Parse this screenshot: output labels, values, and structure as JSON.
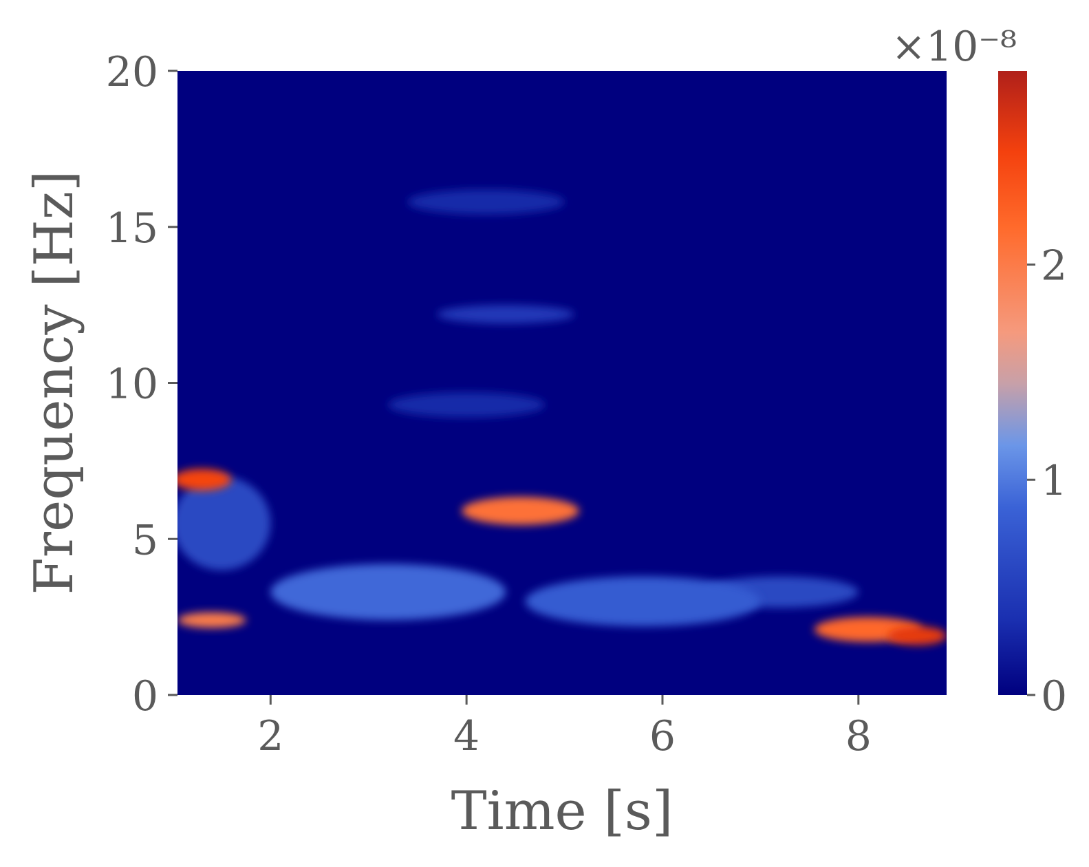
{
  "chart_data": {
    "type": "heatmap",
    "title": "",
    "xlabel": "Time [s]",
    "ylabel": "Frequency [Hz]",
    "xlim": [
      1.05,
      8.9
    ],
    "ylim": [
      0,
      20
    ],
    "x_ticks": [
      "2",
      "4",
      "6",
      "8"
    ],
    "x_tick_values": [
      2,
      4,
      6,
      8
    ],
    "y_ticks": [
      "0",
      "5",
      "10",
      "15",
      "20"
    ],
    "y_tick_values": [
      0,
      5,
      10,
      15,
      20
    ],
    "colormap": "coolwarm-jet-like",
    "colors": {
      "low": "#00007f",
      "mid": "#5b8fe6",
      "high": "#ff6a2b",
      "max": "#b0201a"
    },
    "colorbar": {
      "scale_label": "×10⁻⁸",
      "ticks": [
        "0",
        "1",
        "2"
      ],
      "tick_values": [
        0,
        1,
        2
      ],
      "range": [
        0,
        2.9
      ]
    },
    "hotspots": [
      {
        "t": 1.3,
        "f": 6.9,
        "value": 2.5,
        "dt": 0.3,
        "df": 0.35
      },
      {
        "t": 1.4,
        "f": 2.4,
        "value": 2.0,
        "dt": 0.35,
        "df": 0.25
      },
      {
        "t": 4.55,
        "f": 5.9,
        "value": 2.1,
        "dt": 0.6,
        "df": 0.45
      },
      {
        "t": 8.1,
        "f": 2.1,
        "value": 2.2,
        "dt": 0.55,
        "df": 0.4
      },
      {
        "t": 8.6,
        "f": 1.9,
        "value": 2.6,
        "dt": 0.3,
        "df": 0.3
      },
      {
        "t": 3.2,
        "f": 3.3,
        "value": 0.9,
        "dt": 1.2,
        "df": 0.9
      },
      {
        "t": 5.8,
        "f": 3.0,
        "value": 0.8,
        "dt": 1.2,
        "df": 0.8
      },
      {
        "t": 7.2,
        "f": 3.3,
        "value": 0.6,
        "dt": 0.8,
        "df": 0.5
      },
      {
        "t": 4.4,
        "f": 12.2,
        "value": 0.45,
        "dt": 0.7,
        "df": 0.3
      },
      {
        "t": 1.5,
        "f": 5.5,
        "value": 0.6,
        "dt": 0.5,
        "df": 1.5
      },
      {
        "t": 4.2,
        "f": 15.8,
        "value": 0.3,
        "dt": 0.8,
        "df": 0.4
      },
      {
        "t": 4.0,
        "f": 9.3,
        "value": 0.3,
        "dt": 0.8,
        "df": 0.4
      }
    ]
  }
}
